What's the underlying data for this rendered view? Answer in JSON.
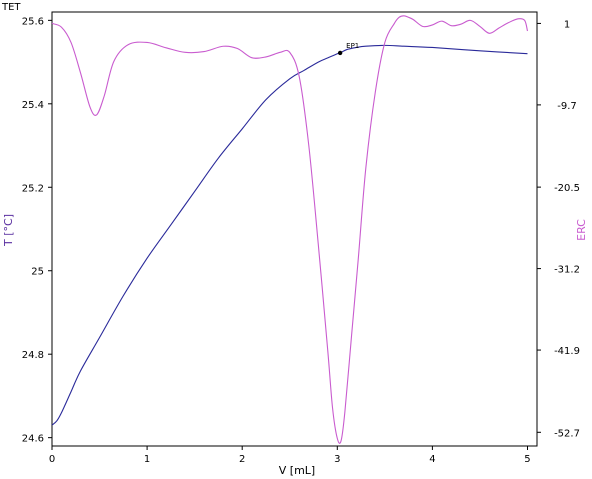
{
  "chart_data": {
    "type": "line",
    "title": "TET",
    "xlabel": "V [mL]",
    "ylabel_left": "T [°C]",
    "ylabel_right": "ERC",
    "xlim": [
      0,
      5.1
    ],
    "ylim_left": [
      24.58,
      25.62
    ],
    "ylim_right": [
      -54.5,
      2.5
    ],
    "x_ticks": [
      "0",
      "1",
      "2",
      "3",
      "4",
      "5"
    ],
    "y_ticks_left": [
      "24.6",
      "24.8",
      "25",
      "25.2",
      "25.4",
      "25.6"
    ],
    "y_ticks_right": [
      "1",
      "-9.7",
      "-20.5",
      "-31.2",
      "-41.9",
      "-52.7"
    ],
    "grid": false,
    "colors": {
      "temperature": "#2a2a9a",
      "erc": "#c95ccf",
      "axis": "#000000"
    },
    "series": [
      {
        "name": "T [°C]",
        "axis": "left",
        "x": [
          0,
          0.05,
          0.1,
          0.2,
          0.3,
          0.5,
          0.75,
          1.0,
          1.25,
          1.5,
          1.75,
          2.0,
          2.25,
          2.5,
          2.65,
          2.8,
          2.9,
          3.0,
          3.03,
          3.1,
          3.2,
          3.3,
          3.5,
          3.7,
          4.0,
          4.5,
          5.0
        ],
        "y": [
          24.63,
          24.64,
          24.66,
          24.71,
          24.76,
          24.84,
          24.94,
          25.03,
          25.11,
          25.19,
          25.27,
          25.34,
          25.41,
          25.46,
          25.48,
          25.5,
          25.51,
          25.52,
          25.522,
          25.53,
          25.535,
          25.538,
          25.54,
          25.538,
          25.535,
          25.527,
          25.52
        ]
      },
      {
        "name": "ERC",
        "axis": "right",
        "x": [
          0,
          0.1,
          0.2,
          0.3,
          0.4,
          0.47,
          0.55,
          0.65,
          0.8,
          1.0,
          1.2,
          1.4,
          1.6,
          1.8,
          1.95,
          2.1,
          2.25,
          2.4,
          2.5,
          2.6,
          2.7,
          2.8,
          2.9,
          2.95,
          3.0,
          3.04,
          3.08,
          3.15,
          3.22,
          3.3,
          3.4,
          3.5,
          3.6,
          3.65,
          3.7,
          3.75,
          3.8,
          3.9,
          4.0,
          4.1,
          4.2,
          4.3,
          4.4,
          4.5,
          4.6,
          4.7,
          4.8,
          4.9,
          4.97,
          5.0
        ],
        "y": [
          1.0,
          0.5,
          -1.5,
          -5.5,
          -10.0,
          -11.0,
          -8.5,
          -4.0,
          -1.8,
          -1.5,
          -2.2,
          -2.8,
          -2.7,
          -2.0,
          -2.3,
          -3.5,
          -3.4,
          -2.8,
          -2.8,
          -6.0,
          -15.0,
          -28.0,
          -42.0,
          -49.5,
          -53.5,
          -53.8,
          -50.0,
          -40.0,
          -30.0,
          -18.0,
          -8.0,
          -1.5,
          1.0,
          1.8,
          2.0,
          1.8,
          1.5,
          0.6,
          0.8,
          1.3,
          0.7,
          0.9,
          1.4,
          0.6,
          -0.3,
          0.4,
          1.1,
          1.6,
          1.4,
          0.0
        ]
      }
    ],
    "endpoint": {
      "label": "EP1",
      "x": 3.03,
      "y": 25.522
    }
  }
}
